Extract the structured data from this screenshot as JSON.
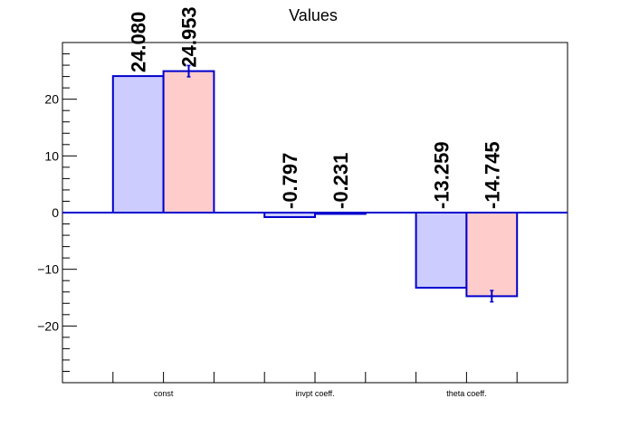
{
  "chart_data": {
    "type": "bar",
    "title": "Values",
    "xlabel": "",
    "ylabel": "",
    "categories": [
      "const",
      "invpt coeff.",
      "theta coeff."
    ],
    "series": [
      {
        "values": [
          24.08,
          -0.797,
          -13.259
        ],
        "errors": [
          0,
          0,
          0
        ],
        "labels": [
          "24.080",
          "-0.797",
          "-13.259"
        ]
      },
      {
        "values": [
          24.953,
          -0.231,
          -14.745
        ],
        "errors": [
          1.0,
          0,
          1.0
        ],
        "labels": [
          "24.953",
          "-0.231",
          "-14.745"
        ]
      }
    ],
    "ylim": [
      -30,
      30
    ],
    "yticks": [
      -20,
      -10,
      0,
      10,
      20
    ],
    "ytick_labels": [
      "−20",
      "−10",
      "0",
      "10",
      "20"
    ],
    "grid": false,
    "colors": {
      "series_fill": [
        "#ccccff",
        "#ffcccc"
      ],
      "bar_stroke": "#0000cc",
      "axis": "#000000"
    }
  }
}
